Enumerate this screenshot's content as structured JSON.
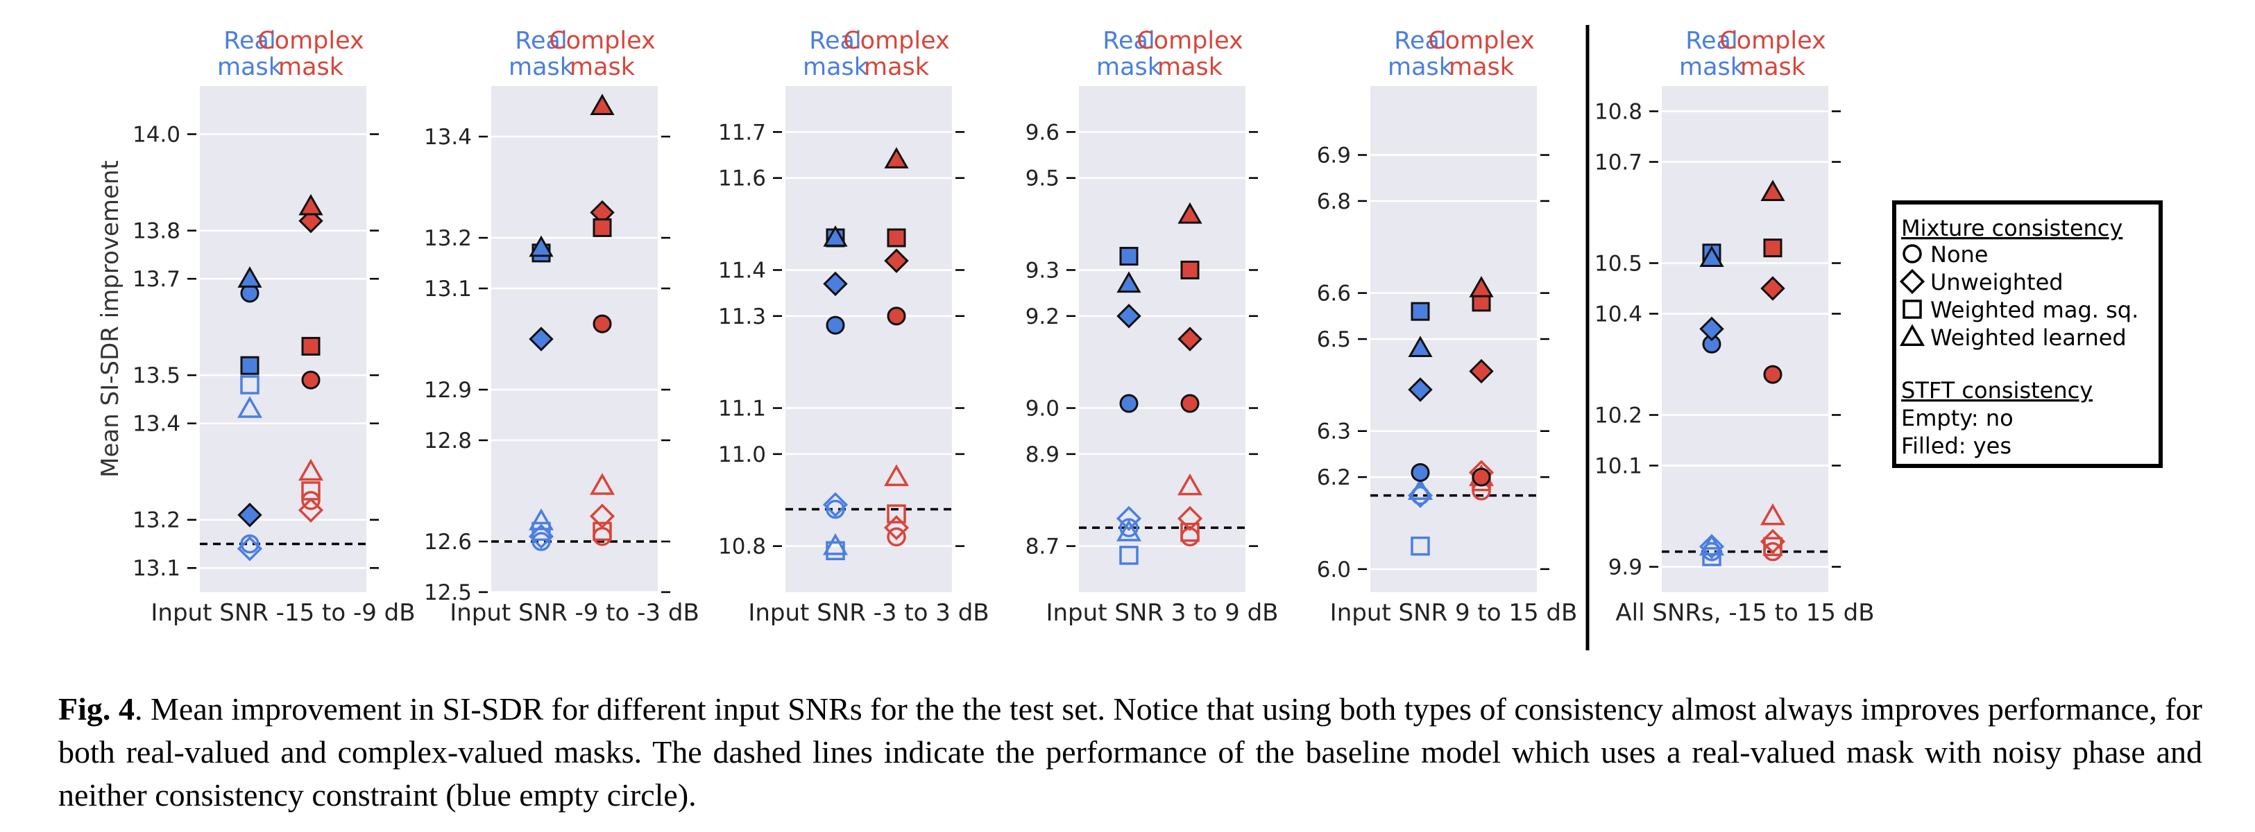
{
  "figure": {
    "real_mask_label": "Real\nmask",
    "complex_mask_label": "Complex\nmask",
    "ylabel": "Mean SI-SDR improvement",
    "colors": {
      "real": "#4a7fe0",
      "complex": "#d9453a",
      "panel_bg": "#e8e8f0"
    },
    "legend": {
      "mixture_title": "Mixture consistency",
      "mixture_items": [
        {
          "marker": "circle",
          "label": "None"
        },
        {
          "marker": "diamond",
          "label": "Unweighted"
        },
        {
          "marker": "square",
          "label": "Weighted mag. sq."
        },
        {
          "marker": "triangle",
          "label": "Weighted learned"
        }
      ],
      "stft_title": "STFT consistency",
      "stft_items": [
        "Empty: no",
        "Filled: yes"
      ]
    }
  },
  "chart_data": [
    {
      "type": "scatter",
      "xlabel": "Input SNR -15 to -9 dB",
      "ylim": [
        13.05,
        14.1
      ],
      "yticks": [
        13.1,
        13.2,
        13.4,
        13.5,
        13.7,
        13.8,
        14.0
      ],
      "ytick_labels": [
        "13.1",
        "13.2",
        "13.4",
        "13.5",
        "13.7",
        "13.8",
        "14.0"
      ],
      "baseline": 13.15,
      "points": [
        {
          "mask": "real",
          "marker": "circle",
          "filled": false,
          "y": 13.15
        },
        {
          "mask": "real",
          "marker": "diamond",
          "filled": false,
          "y": 13.14
        },
        {
          "mask": "real",
          "marker": "square",
          "filled": false,
          "y": 13.48
        },
        {
          "mask": "real",
          "marker": "triangle",
          "filled": false,
          "y": 13.43
        },
        {
          "mask": "real",
          "marker": "circle",
          "filled": true,
          "y": 13.67
        },
        {
          "mask": "real",
          "marker": "diamond",
          "filled": true,
          "y": 13.21
        },
        {
          "mask": "real",
          "marker": "square",
          "filled": true,
          "y": 13.52
        },
        {
          "mask": "real",
          "marker": "triangle",
          "filled": true,
          "y": 13.7
        },
        {
          "mask": "complex",
          "marker": "circle",
          "filled": false,
          "y": 13.24
        },
        {
          "mask": "complex",
          "marker": "diamond",
          "filled": false,
          "y": 13.22
        },
        {
          "mask": "complex",
          "marker": "square",
          "filled": false,
          "y": 13.26
        },
        {
          "mask": "complex",
          "marker": "triangle",
          "filled": false,
          "y": 13.3
        },
        {
          "mask": "complex",
          "marker": "circle",
          "filled": true,
          "y": 13.49
        },
        {
          "mask": "complex",
          "marker": "diamond",
          "filled": true,
          "y": 13.82
        },
        {
          "mask": "complex",
          "marker": "square",
          "filled": true,
          "y": 13.56
        },
        {
          "mask": "complex",
          "marker": "triangle",
          "filled": true,
          "y": 13.85
        }
      ]
    },
    {
      "type": "scatter",
      "xlabel": "Input SNR -9 to -3 dB",
      "ylim": [
        12.5,
        13.5
      ],
      "yticks": [
        12.5,
        12.6,
        12.8,
        12.9,
        13.1,
        13.2,
        13.4
      ],
      "ytick_labels": [
        "12.5",
        "12.6",
        "12.8",
        "12.9",
        "13.1",
        "13.2",
        "13.4"
      ],
      "baseline": 12.6,
      "points": [
        {
          "mask": "real",
          "marker": "circle",
          "filled": false,
          "y": 12.6
        },
        {
          "mask": "real",
          "marker": "diamond",
          "filled": false,
          "y": 12.61
        },
        {
          "mask": "real",
          "marker": "square",
          "filled": false,
          "y": 12.62
        },
        {
          "mask": "real",
          "marker": "triangle",
          "filled": false,
          "y": 12.64
        },
        {
          "mask": "real",
          "marker": "circle",
          "filled": true,
          "y": 13.17
        },
        {
          "mask": "real",
          "marker": "diamond",
          "filled": true,
          "y": 13.0
        },
        {
          "mask": "real",
          "marker": "square",
          "filled": true,
          "y": 13.17
        },
        {
          "mask": "real",
          "marker": "triangle",
          "filled": true,
          "y": 13.18
        },
        {
          "mask": "complex",
          "marker": "circle",
          "filled": false,
          "y": 12.61
        },
        {
          "mask": "complex",
          "marker": "diamond",
          "filled": false,
          "y": 12.65
        },
        {
          "mask": "complex",
          "marker": "square",
          "filled": false,
          "y": 12.62
        },
        {
          "mask": "complex",
          "marker": "triangle",
          "filled": false,
          "y": 12.71
        },
        {
          "mask": "complex",
          "marker": "circle",
          "filled": true,
          "y": 13.03
        },
        {
          "mask": "complex",
          "marker": "diamond",
          "filled": true,
          "y": 13.25
        },
        {
          "mask": "complex",
          "marker": "square",
          "filled": true,
          "y": 13.22
        },
        {
          "mask": "complex",
          "marker": "triangle",
          "filled": true,
          "y": 13.46
        }
      ]
    },
    {
      "type": "scatter",
      "xlabel": "Input SNR -3 to 3 dB",
      "ylim": [
        10.7,
        11.8
      ],
      "yticks": [
        10.8,
        11.0,
        11.1,
        11.3,
        11.4,
        11.6,
        11.7
      ],
      "ytick_labels": [
        "10.8",
        "11.0",
        "11.1",
        "11.3",
        "11.4",
        "11.6",
        "11.7"
      ],
      "baseline": 10.88,
      "points": [
        {
          "mask": "real",
          "marker": "circle",
          "filled": false,
          "y": 10.88
        },
        {
          "mask": "real",
          "marker": "diamond",
          "filled": false,
          "y": 10.89
        },
        {
          "mask": "real",
          "marker": "square",
          "filled": false,
          "y": 10.79
        },
        {
          "mask": "real",
          "marker": "triangle",
          "filled": false,
          "y": 10.8
        },
        {
          "mask": "real",
          "marker": "circle",
          "filled": true,
          "y": 11.28
        },
        {
          "mask": "real",
          "marker": "diamond",
          "filled": true,
          "y": 11.37
        },
        {
          "mask": "real",
          "marker": "square",
          "filled": true,
          "y": 11.47
        },
        {
          "mask": "real",
          "marker": "triangle",
          "filled": true,
          "y": 11.47
        },
        {
          "mask": "complex",
          "marker": "circle",
          "filled": false,
          "y": 10.82
        },
        {
          "mask": "complex",
          "marker": "diamond",
          "filled": false,
          "y": 10.84
        },
        {
          "mask": "complex",
          "marker": "square",
          "filled": false,
          "y": 10.87
        },
        {
          "mask": "complex",
          "marker": "triangle",
          "filled": false,
          "y": 10.95
        },
        {
          "mask": "complex",
          "marker": "circle",
          "filled": true,
          "y": 11.3
        },
        {
          "mask": "complex",
          "marker": "diamond",
          "filled": true,
          "y": 11.42
        },
        {
          "mask": "complex",
          "marker": "square",
          "filled": true,
          "y": 11.47
        },
        {
          "mask": "complex",
          "marker": "triangle",
          "filled": true,
          "y": 11.64
        }
      ]
    },
    {
      "type": "scatter",
      "xlabel": "Input SNR 3 to 9 dB",
      "ylim": [
        8.6,
        9.7
      ],
      "yticks": [
        8.7,
        8.9,
        9.0,
        9.2,
        9.3,
        9.5,
        9.6
      ],
      "ytick_labels": [
        "8.7",
        "8.9",
        "9.0",
        "9.2",
        "9.3",
        "9.5",
        "9.6"
      ],
      "baseline": 8.74,
      "points": [
        {
          "mask": "real",
          "marker": "circle",
          "filled": false,
          "y": 8.74
        },
        {
          "mask": "real",
          "marker": "diamond",
          "filled": false,
          "y": 8.76
        },
        {
          "mask": "real",
          "marker": "square",
          "filled": false,
          "y": 8.68
        },
        {
          "mask": "real",
          "marker": "triangle",
          "filled": false,
          "y": 8.73
        },
        {
          "mask": "real",
          "marker": "circle",
          "filled": true,
          "y": 9.01
        },
        {
          "mask": "real",
          "marker": "diamond",
          "filled": true,
          "y": 9.2
        },
        {
          "mask": "real",
          "marker": "square",
          "filled": true,
          "y": 9.33
        },
        {
          "mask": "real",
          "marker": "triangle",
          "filled": true,
          "y": 9.27
        },
        {
          "mask": "complex",
          "marker": "circle",
          "filled": false,
          "y": 8.72
        },
        {
          "mask": "complex",
          "marker": "diamond",
          "filled": false,
          "y": 8.76
        },
        {
          "mask": "complex",
          "marker": "square",
          "filled": false,
          "y": 8.73
        },
        {
          "mask": "complex",
          "marker": "triangle",
          "filled": false,
          "y": 8.83
        },
        {
          "mask": "complex",
          "marker": "circle",
          "filled": true,
          "y": 9.01
        },
        {
          "mask": "complex",
          "marker": "diamond",
          "filled": true,
          "y": 9.15
        },
        {
          "mask": "complex",
          "marker": "square",
          "filled": true,
          "y": 9.3
        },
        {
          "mask": "complex",
          "marker": "triangle",
          "filled": true,
          "y": 9.42
        }
      ]
    },
    {
      "type": "scatter",
      "xlabel": "Input SNR 9 to 15 dB",
      "ylim": [
        5.95,
        7.05
      ],
      "yticks": [
        6.0,
        6.2,
        6.3,
        6.5,
        6.6,
        6.8,
        6.9
      ],
      "ytick_labels": [
        "6.0",
        "6.2",
        "6.3",
        "6.5",
        "6.6",
        "6.8",
        "6.9"
      ],
      "baseline": 6.16,
      "points": [
        {
          "mask": "real",
          "marker": "circle",
          "filled": false,
          "y": 6.16
        },
        {
          "mask": "real",
          "marker": "diamond",
          "filled": false,
          "y": 6.16
        },
        {
          "mask": "real",
          "marker": "square",
          "filled": false,
          "y": 6.05
        },
        {
          "mask": "real",
          "marker": "triangle",
          "filled": false,
          "y": 6.17
        },
        {
          "mask": "real",
          "marker": "circle",
          "filled": true,
          "y": 6.21
        },
        {
          "mask": "real",
          "marker": "diamond",
          "filled": true,
          "y": 6.39
        },
        {
          "mask": "real",
          "marker": "square",
          "filled": true,
          "y": 6.56
        },
        {
          "mask": "real",
          "marker": "triangle",
          "filled": true,
          "y": 6.48
        },
        {
          "mask": "complex",
          "marker": "circle",
          "filled": false,
          "y": 6.17
        },
        {
          "mask": "complex",
          "marker": "diamond",
          "filled": false,
          "y": 6.21
        },
        {
          "mask": "complex",
          "marker": "square",
          "filled": false,
          "y": 6.19
        },
        {
          "mask": "complex",
          "marker": "triangle",
          "filled": false,
          "y": 6.2
        },
        {
          "mask": "complex",
          "marker": "circle",
          "filled": true,
          "y": 6.2
        },
        {
          "mask": "complex",
          "marker": "diamond",
          "filled": true,
          "y": 6.43
        },
        {
          "mask": "complex",
          "marker": "square",
          "filled": true,
          "y": 6.58
        },
        {
          "mask": "complex",
          "marker": "triangle",
          "filled": true,
          "y": 6.61
        }
      ]
    },
    {
      "type": "scatter",
      "xlabel": "All SNRs, -15 to 15 dB",
      "ylim": [
        9.85,
        10.85
      ],
      "yticks": [
        9.9,
        10.1,
        10.2,
        10.4,
        10.5,
        10.7,
        10.8
      ],
      "ytick_labels": [
        "9.9",
        "10.1",
        "10.2",
        "10.4",
        "10.5",
        "10.7",
        "10.8"
      ],
      "baseline": 9.93,
      "points": [
        {
          "mask": "real",
          "marker": "circle",
          "filled": false,
          "y": 9.93
        },
        {
          "mask": "real",
          "marker": "diamond",
          "filled": false,
          "y": 9.94
        },
        {
          "mask": "real",
          "marker": "square",
          "filled": false,
          "y": 9.92
        },
        {
          "mask": "real",
          "marker": "triangle",
          "filled": false,
          "y": 9.94
        },
        {
          "mask": "real",
          "marker": "circle",
          "filled": true,
          "y": 10.34
        },
        {
          "mask": "real",
          "marker": "diamond",
          "filled": true,
          "y": 10.37
        },
        {
          "mask": "real",
          "marker": "square",
          "filled": true,
          "y": 10.52
        },
        {
          "mask": "real",
          "marker": "triangle",
          "filled": true,
          "y": 10.51
        },
        {
          "mask": "complex",
          "marker": "circle",
          "filled": false,
          "y": 9.93
        },
        {
          "mask": "complex",
          "marker": "diamond",
          "filled": false,
          "y": 9.95
        },
        {
          "mask": "complex",
          "marker": "square",
          "filled": false,
          "y": 9.94
        },
        {
          "mask": "complex",
          "marker": "triangle",
          "filled": false,
          "y": 10.0
        },
        {
          "mask": "complex",
          "marker": "circle",
          "filled": true,
          "y": 10.28
        },
        {
          "mask": "complex",
          "marker": "diamond",
          "filled": true,
          "y": 10.45
        },
        {
          "mask": "complex",
          "marker": "square",
          "filled": true,
          "y": 10.53
        },
        {
          "mask": "complex",
          "marker": "triangle",
          "filled": true,
          "y": 10.64
        }
      ]
    }
  ],
  "caption": {
    "label": "Fig. 4",
    "text": ". Mean improvement in SI-SDR for different input SNRs for the the test set. Notice that using both types of consistency almost always improves performance, for both real-valued and complex-valued masks.  The dashed lines indicate the performance of the baseline model which uses a real-valued mask with noisy phase and neither consistency constraint (blue empty circle)."
  }
}
